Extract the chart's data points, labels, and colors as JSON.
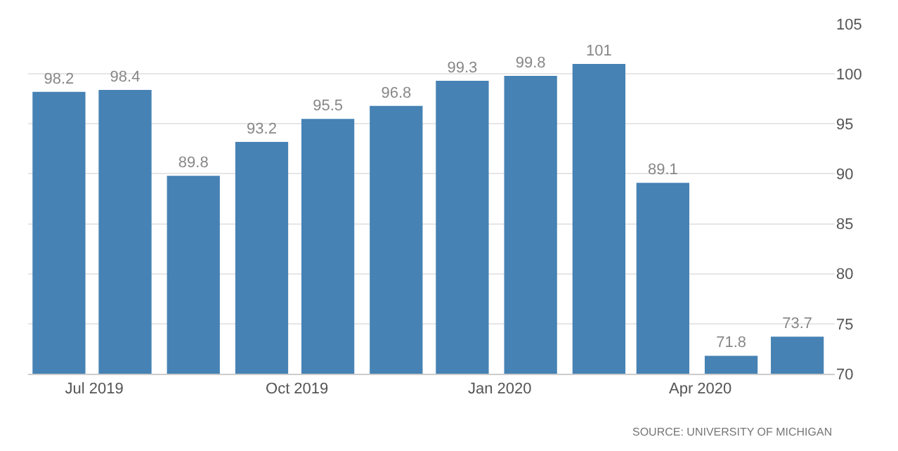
{
  "chart_data": {
    "type": "bar",
    "x": [
      "2019-06-15",
      "2019-07-15",
      "2019-08-15",
      "2019-09-15",
      "2019-10-15",
      "2019-11-15",
      "2019-12-15",
      "2020-01-15",
      "2020-02-15",
      "2020-03-15",
      "2020-04-15",
      "2020-05-15"
    ],
    "values": [
      98.2,
      98.4,
      89.8,
      93.2,
      95.5,
      96.8,
      99.3,
      99.8,
      101,
      89.1,
      71.8,
      73.7
    ],
    "color": "#4682b4",
    "xlim": [
      "2019-06-01",
      "2020-06-01"
    ],
    "xticks": [
      {
        "value": "2019-07-01",
        "label": "Jul 2019"
      },
      {
        "value": "2019-10-01",
        "label": "Oct 2019"
      },
      {
        "value": "2020-01-01",
        "label": "Jan 2020"
      },
      {
        "value": "2020-04-01",
        "label": "Apr 2020"
      }
    ],
    "ylim": [
      70,
      105
    ],
    "yticks": [
      70,
      75,
      80,
      85,
      90,
      95,
      100,
      105
    ],
    "grid": "y",
    "data_labels": true,
    "annotations": [
      "SOURCE: UNIVERSITY OF MICHIGAN"
    ]
  }
}
